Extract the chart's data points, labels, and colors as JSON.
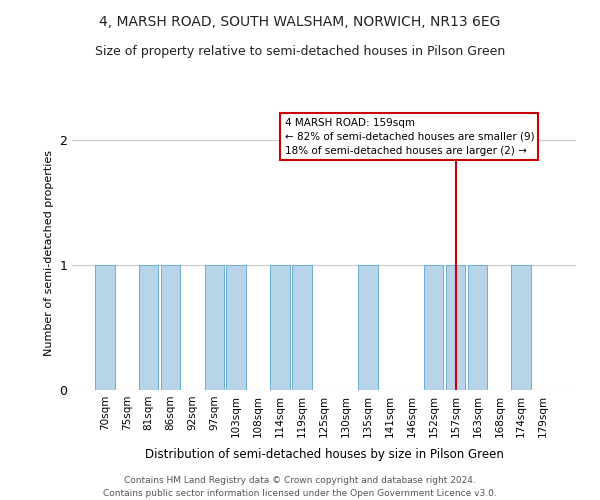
{
  "title": "4, MARSH ROAD, SOUTH WALSHAM, NORWICH, NR13 6EG",
  "subtitle": "Size of property relative to semi-detached houses in Pilson Green",
  "xlabel": "Distribution of semi-detached houses by size in Pilson Green",
  "ylabel": "Number of semi-detached properties",
  "bins": [
    "70sqm",
    "75sqm",
    "81sqm",
    "86sqm",
    "92sqm",
    "97sqm",
    "103sqm",
    "108sqm",
    "114sqm",
    "119sqm",
    "125sqm",
    "130sqm",
    "135sqm",
    "141sqm",
    "146sqm",
    "152sqm",
    "157sqm",
    "163sqm",
    "168sqm",
    "174sqm",
    "179sqm"
  ],
  "values": [
    1,
    0,
    1,
    1,
    0,
    1,
    1,
    0,
    1,
    1,
    0,
    0,
    1,
    0,
    0,
    1,
    1,
    1,
    0,
    1,
    0
  ],
  "bar_color": "#b8d4e8",
  "bar_edge_color": "#6baed6",
  "subject_line_index": 16,
  "annotation_title": "4 MARSH ROAD: 159sqm",
  "annotation_line1": "← 82% of semi-detached houses are smaller (9)",
  "annotation_line2": "18% of semi-detached houses are larger (2) →",
  "annotation_color": "#cc0000",
  "footer_line1": "Contains HM Land Registry data © Crown copyright and database right 2024.",
  "footer_line2": "Contains public sector information licensed under the Open Government Licence v3.0.",
  "ylim": [
    0,
    2.2
  ],
  "yticks": [
    0,
    1,
    2
  ],
  "background_color": "#ffffff",
  "grid_color": "#cccccc",
  "title_fontsize": 10,
  "subtitle_fontsize": 9
}
